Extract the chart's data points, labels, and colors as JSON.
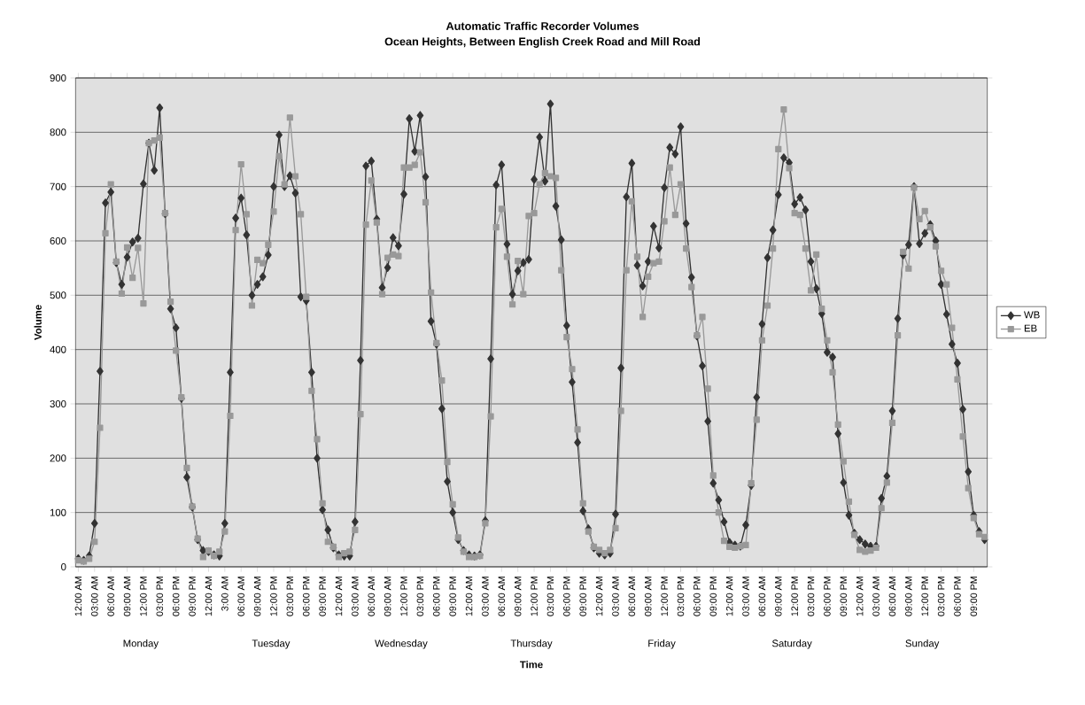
{
  "chart_data": {
    "type": "line",
    "title": "Automatic Traffic Recorder Volumes",
    "subtitle": "Ocean Heights, Between English Creek Road and Mill Road",
    "xlabel": "Time",
    "ylabel": "Volume",
    "categories": [
      "12:00 AM",
      null,
      null,
      "03:00 AM",
      null,
      null,
      "06:00 AM",
      null,
      null,
      "09:00 AM",
      null,
      null,
      "12:00 PM",
      null,
      null,
      "03:00 PM",
      null,
      null,
      "06:00 PM",
      null,
      null,
      "09:00 PM",
      null,
      null,
      "12:00 AM",
      null,
      null,
      "3:00 AM",
      null,
      null,
      "06:00 AM",
      null,
      null,
      "09:00 AM",
      null,
      null,
      "12:00 PM",
      null,
      null,
      "03:00 PM",
      null,
      null,
      "06:00 PM",
      null,
      null,
      "09:00 PM",
      null,
      null,
      "12:00 AM",
      null,
      null,
      "03:00 AM",
      null,
      null,
      "06:00 AM",
      null,
      null,
      "09:00 AM",
      null,
      null,
      "12:00 PM",
      null,
      null,
      "03:00 PM",
      null,
      null,
      "06:00 PM",
      null,
      null,
      "09:00 PM",
      null,
      null,
      "12:00 AM",
      null,
      null,
      "03:00 AM",
      null,
      null,
      "06:00 AM",
      null,
      null,
      "09:00 AM",
      null,
      null,
      "12:00 PM",
      null,
      null,
      "03:00 PM",
      null,
      null,
      "06:00 PM",
      null,
      null,
      "09:00 PM",
      null,
      null,
      "12:00 AM",
      null,
      null,
      "03:00 AM",
      null,
      null,
      "06:00 AM",
      null,
      null,
      "09:00 AM",
      null,
      null,
      "12:00 PM",
      null,
      null,
      "03:00 PM",
      null,
      null,
      "06:00 PM",
      null,
      null,
      "09:00 PM",
      null,
      null,
      "12:00 AM",
      null,
      null,
      "03:00 AM",
      null,
      null,
      "06:00 AM",
      null,
      null,
      "09:00 AM",
      null,
      null,
      "12:00 PM",
      null,
      null,
      "03:00 PM",
      null,
      null,
      "06:00 PM",
      null,
      null,
      "09:00 PM",
      null,
      null,
      "12:00 AM",
      null,
      null,
      "03:00 AM",
      null,
      null,
      "06:00 AM",
      null,
      null,
      "09:00 AM",
      null,
      null,
      "12:00 PM",
      null,
      null,
      "03:00 PM",
      null,
      null,
      "06:00 PM",
      null,
      null,
      "09:00 PM",
      null,
      null
    ],
    "series": [
      {
        "name": "WB",
        "color": "#333333",
        "marker": "diamond",
        "values": [
          15,
          12,
          20,
          80,
          360,
          670,
          690,
          560,
          520,
          570,
          598,
          605,
          705,
          780,
          730,
          845,
          650,
          475,
          440,
          310,
          165,
          110,
          50,
          30,
          28,
          22,
          20,
          80,
          358,
          642,
          679,
          611,
          500,
          520,
          534,
          574,
          700,
          795,
          700,
          720,
          688,
          497,
          490,
          358,
          200,
          105,
          68,
          35,
          22,
          20,
          20,
          83,
          380,
          738,
          747,
          640,
          514,
          551,
          606,
          591,
          686,
          825,
          765,
          831,
          718,
          452,
          410,
          291,
          157,
          100,
          50,
          30,
          22,
          20,
          22,
          85,
          383,
          703,
          740,
          594,
          502,
          545,
          560,
          566,
          713,
          791,
          710,
          852,
          664,
          602,
          444,
          340,
          229,
          103,
          70,
          35,
          25,
          22,
          25,
          97,
          366,
          681,
          743,
          555,
          517,
          562,
          627,
          587,
          698,
          772,
          760,
          810,
          632,
          533,
          425,
          370,
          268,
          154,
          123,
          83,
          45,
          40,
          38,
          77,
          150,
          312,
          447,
          569,
          620,
          685,
          753,
          744,
          668,
          680,
          657,
          562,
          512,
          466,
          395,
          386,
          245,
          155,
          95,
          62,
          50,
          42,
          38,
          38,
          126,
          167,
          287,
          457,
          574,
          593,
          700,
          595,
          614,
          630,
          600,
          520,
          465,
          410,
          375,
          290,
          175,
          95,
          65,
          50
        ]
      },
      {
        "name": "EB",
        "color": "#999999",
        "marker": "square",
        "values": [
          12,
          10,
          15,
          46,
          256,
          614,
          704,
          562,
          503,
          588,
          532,
          587,
          485,
          780,
          785,
          790,
          651,
          488,
          398,
          312,
          182,
          111,
          52,
          18,
          30,
          20,
          28,
          65,
          278,
          620,
          741,
          649,
          481,
          565,
          559,
          593,
          654,
          756,
          704,
          827,
          719,
          649,
          497,
          324,
          235,
          117,
          46,
          37,
          18,
          25,
          28,
          68,
          281,
          630,
          711,
          634,
          502,
          569,
          575,
          572,
          735,
          735,
          740,
          763,
          671,
          505,
          412,
          343,
          193,
          115,
          54,
          28,
          18,
          18,
          20,
          80,
          277,
          625,
          659,
          571,
          483,
          563,
          502,
          646,
          651,
          704,
          725,
          719,
          716,
          546,
          423,
          364,
          253,
          117,
          65,
          37,
          31,
          25,
          31,
          71,
          287,
          546,
          673,
          571,
          460,
          534,
          559,
          562,
          636,
          735,
          648,
          704,
          586,
          515,
          426,
          460,
          328,
          168,
          100,
          48,
          37,
          35,
          38,
          40,
          154,
          271,
          417,
          481,
          586,
          769,
          842,
          734,
          651,
          648,
          586,
          509,
          575,
          475,
          417,
          358,
          262,
          194,
          120,
          59,
          31,
          28,
          30,
          35,
          108,
          155,
          265,
          426,
          580,
          549,
          698,
          640,
          655,
          625,
          590,
          545,
          520,
          440,
          345,
          240,
          145,
          90,
          60,
          55
        ]
      }
    ],
    "annotations": [
      "Monday",
      "Tuesday",
      "Wednesday",
      "Thursday",
      "Friday",
      "Saturday",
      "Sunday"
    ],
    "ylim": [
      0,
      900
    ],
    "yticks": [
      0,
      100,
      200,
      300,
      400,
      500,
      600,
      700,
      800,
      900
    ],
    "grid": "y",
    "legend": "right",
    "line_style": "solid"
  }
}
